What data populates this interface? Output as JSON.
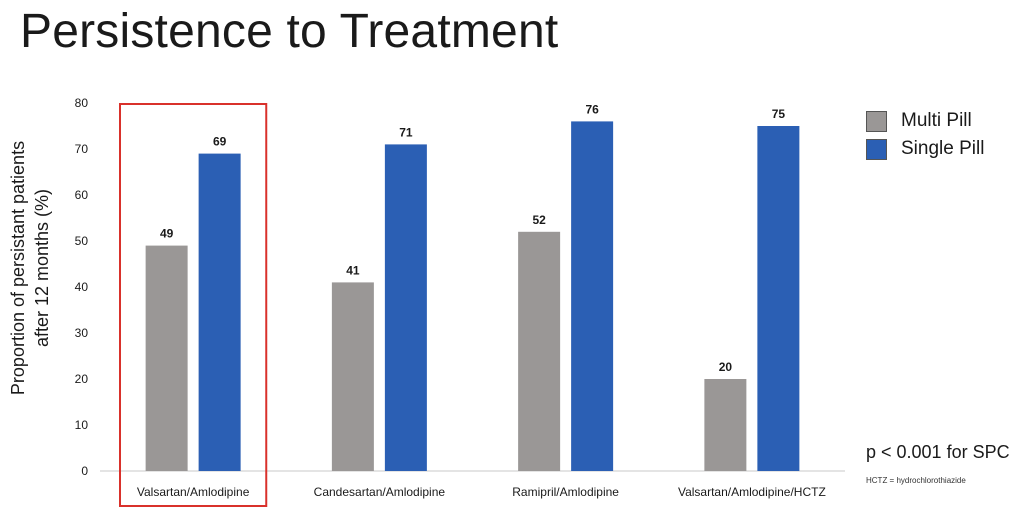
{
  "title": "Persistence to Treatment",
  "chart_data": {
    "type": "bar",
    "categories": [
      "Valsartan/Amlodipine",
      "Candesartan/Amlodipine",
      "Ramipril/Amlodipine",
      "Valsartan/Amlodipine/HCTZ"
    ],
    "series": [
      {
        "name": "Multi Pill",
        "color": "#9a9796",
        "values": [
          49,
          41,
          52,
          20
        ]
      },
      {
        "name": "Single Pill",
        "color": "#2b5fb4",
        "values": [
          69,
          71,
          76,
          75
        ]
      }
    ],
    "ylabel": "Proportion of persistant patients after 12 months (%)",
    "ylabel_lines": [
      "Proportion of persistant patients",
      "after 12 months (%)"
    ],
    "ylim": [
      0,
      80
    ],
    "yticks": [
      0,
      10,
      20,
      30,
      40,
      50,
      60,
      70,
      80
    ],
    "grid": false,
    "legend_position": "right",
    "highlighted_category": "Valsartan/Amlodipine",
    "highlight_color": "#d9312b"
  },
  "annotations": {
    "significance": "p < 0.001 for SPC",
    "footnote": "HCTZ = hydrochlorothiazide"
  }
}
